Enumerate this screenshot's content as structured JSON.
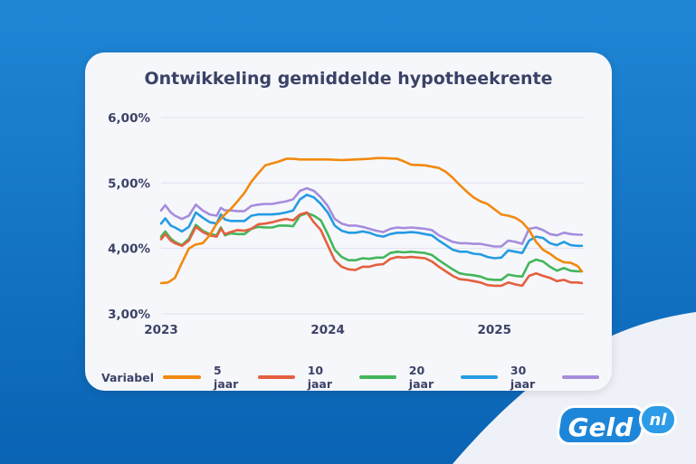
{
  "colors": {
    "variabel": "#f18a0e",
    "jaar5": "#e4603f",
    "jaar10": "#43b65b",
    "jaar20": "#259be2",
    "jaar30": "#a58ddc"
  },
  "logo": {
    "main": "Geld",
    "suffix": "nl"
  },
  "chart_data": {
    "type": "line",
    "title": "Ontwikkeling gemiddelde hypotheekrente",
    "xlabel": "",
    "ylabel": "",
    "x_ticks": [
      {
        "label": "2023",
        "t": 0
      },
      {
        "label": "2024",
        "t": 12
      },
      {
        "label": "2025",
        "t": 24
      }
    ],
    "y_ticks": [
      "3,00%",
      "4,00%",
      "5,00%",
      "6,00%"
    ],
    "ylim": [
      3.0,
      6.0
    ],
    "xlim": [
      0,
      30.5
    ],
    "grid": true,
    "legend_position": "bottom",
    "series": [
      {
        "name": "Variabel",
        "color_key": "variabel",
        "points": [
          [
            0,
            3.47
          ],
          [
            0.5,
            3.48
          ],
          [
            1,
            3.55
          ],
          [
            1.5,
            3.78
          ],
          [
            2,
            4.0
          ],
          [
            2.5,
            4.06
          ],
          [
            3,
            4.08
          ],
          [
            3.5,
            4.2
          ],
          [
            4,
            4.38
          ],
          [
            4.5,
            4.5
          ],
          [
            5,
            4.6
          ],
          [
            5.5,
            4.72
          ],
          [
            6,
            4.85
          ],
          [
            6.5,
            5.02
          ],
          [
            7,
            5.15
          ],
          [
            7.5,
            5.27
          ],
          [
            8,
            5.3
          ],
          [
            8.5,
            5.33
          ],
          [
            9,
            5.37
          ],
          [
            9.5,
            5.37
          ],
          [
            10,
            5.36
          ],
          [
            11,
            5.36
          ],
          [
            12,
            5.36
          ],
          [
            13,
            5.35
          ],
          [
            14,
            5.36
          ],
          [
            15,
            5.37
          ],
          [
            15.5,
            5.38
          ],
          [
            16,
            5.38
          ],
          [
            17,
            5.37
          ],
          [
            17.5,
            5.33
          ],
          [
            18,
            5.28
          ],
          [
            19,
            5.27
          ],
          [
            20,
            5.23
          ],
          [
            20.5,
            5.17
          ],
          [
            21,
            5.08
          ],
          [
            21.5,
            4.97
          ],
          [
            22,
            4.87
          ],
          [
            22.5,
            4.78
          ],
          [
            23,
            4.72
          ],
          [
            23.5,
            4.68
          ],
          [
            24,
            4.6
          ],
          [
            24.5,
            4.52
          ],
          [
            25,
            4.5
          ],
          [
            25.5,
            4.47
          ],
          [
            26,
            4.4
          ],
          [
            26.5,
            4.28
          ],
          [
            27,
            4.1
          ],
          [
            27.5,
            3.98
          ],
          [
            28,
            3.92
          ],
          [
            28.5,
            3.84
          ],
          [
            29,
            3.79
          ],
          [
            29.5,
            3.78
          ],
          [
            30,
            3.73
          ],
          [
            30.3,
            3.65
          ]
        ]
      },
      {
        "name": "5 jaar",
        "color_key": "jaar5",
        "points": [
          [
            0,
            4.14
          ],
          [
            0.3,
            4.22
          ],
          [
            0.7,
            4.12
          ],
          [
            1,
            4.08
          ],
          [
            1.5,
            4.04
          ],
          [
            2,
            4.12
          ],
          [
            2.5,
            4.33
          ],
          [
            3,
            4.25
          ],
          [
            3.5,
            4.2
          ],
          [
            4,
            4.18
          ],
          [
            4.3,
            4.3
          ],
          [
            4.6,
            4.22
          ],
          [
            5,
            4.25
          ],
          [
            5.5,
            4.28
          ],
          [
            6,
            4.27
          ],
          [
            6.5,
            4.3
          ],
          [
            7,
            4.37
          ],
          [
            7.5,
            4.38
          ],
          [
            8,
            4.4
          ],
          [
            8.5,
            4.43
          ],
          [
            9,
            4.45
          ],
          [
            9.5,
            4.43
          ],
          [
            10,
            4.52
          ],
          [
            10.5,
            4.55
          ],
          [
            11,
            4.4
          ],
          [
            11.5,
            4.28
          ],
          [
            12,
            4.05
          ],
          [
            12.5,
            3.82
          ],
          [
            13,
            3.72
          ],
          [
            13.5,
            3.68
          ],
          [
            14,
            3.67
          ],
          [
            14.5,
            3.72
          ],
          [
            15,
            3.72
          ],
          [
            15.5,
            3.75
          ],
          [
            16,
            3.76
          ],
          [
            16.5,
            3.84
          ],
          [
            17,
            3.87
          ],
          [
            17.5,
            3.86
          ],
          [
            18,
            3.87
          ],
          [
            18.5,
            3.86
          ],
          [
            19,
            3.85
          ],
          [
            19.5,
            3.8
          ],
          [
            20,
            3.72
          ],
          [
            20.5,
            3.65
          ],
          [
            21,
            3.58
          ],
          [
            21.5,
            3.53
          ],
          [
            22,
            3.52
          ],
          [
            22.5,
            3.5
          ],
          [
            23,
            3.48
          ],
          [
            23.5,
            3.44
          ],
          [
            24,
            3.43
          ],
          [
            24.5,
            3.43
          ],
          [
            25,
            3.48
          ],
          [
            25.5,
            3.45
          ],
          [
            26,
            3.43
          ],
          [
            26.5,
            3.58
          ],
          [
            27,
            3.62
          ],
          [
            27.5,
            3.58
          ],
          [
            28,
            3.55
          ],
          [
            28.5,
            3.5
          ],
          [
            29,
            3.52
          ],
          [
            29.5,
            3.48
          ],
          [
            30,
            3.48
          ],
          [
            30.3,
            3.47
          ]
        ]
      },
      {
        "name": "10 jaar",
        "color_key": "jaar10",
        "points": [
          [
            0,
            4.18
          ],
          [
            0.3,
            4.26
          ],
          [
            0.7,
            4.15
          ],
          [
            1,
            4.1
          ],
          [
            1.5,
            4.05
          ],
          [
            2,
            4.15
          ],
          [
            2.5,
            4.36
          ],
          [
            3,
            4.27
          ],
          [
            3.5,
            4.22
          ],
          [
            4,
            4.2
          ],
          [
            4.3,
            4.32
          ],
          [
            4.6,
            4.2
          ],
          [
            5,
            4.23
          ],
          [
            5.5,
            4.22
          ],
          [
            6,
            4.22
          ],
          [
            6.5,
            4.3
          ],
          [
            7,
            4.33
          ],
          [
            7.5,
            4.32
          ],
          [
            8,
            4.32
          ],
          [
            8.5,
            4.35
          ],
          [
            9,
            4.35
          ],
          [
            9.5,
            4.34
          ],
          [
            10,
            4.5
          ],
          [
            10.5,
            4.54
          ],
          [
            11,
            4.5
          ],
          [
            11.5,
            4.43
          ],
          [
            12,
            4.22
          ],
          [
            12.5,
            3.98
          ],
          [
            13,
            3.87
          ],
          [
            13.5,
            3.82
          ],
          [
            14,
            3.82
          ],
          [
            14.5,
            3.85
          ],
          [
            15,
            3.84
          ],
          [
            15.5,
            3.86
          ],
          [
            16,
            3.86
          ],
          [
            16.5,
            3.93
          ],
          [
            17,
            3.95
          ],
          [
            17.5,
            3.94
          ],
          [
            18,
            3.95
          ],
          [
            18.5,
            3.94
          ],
          [
            19,
            3.93
          ],
          [
            19.5,
            3.9
          ],
          [
            20,
            3.82
          ],
          [
            20.5,
            3.75
          ],
          [
            21,
            3.68
          ],
          [
            21.5,
            3.62
          ],
          [
            22,
            3.6
          ],
          [
            22.5,
            3.59
          ],
          [
            23,
            3.57
          ],
          [
            23.5,
            3.53
          ],
          [
            24,
            3.52
          ],
          [
            24.5,
            3.52
          ],
          [
            25,
            3.6
          ],
          [
            25.5,
            3.58
          ],
          [
            26,
            3.57
          ],
          [
            26.5,
            3.78
          ],
          [
            27,
            3.83
          ],
          [
            27.5,
            3.8
          ],
          [
            28,
            3.72
          ],
          [
            28.5,
            3.66
          ],
          [
            29,
            3.7
          ],
          [
            29.5,
            3.66
          ],
          [
            30,
            3.65
          ],
          [
            30.3,
            3.65
          ]
        ]
      },
      {
        "name": "20 jaar",
        "color_key": "jaar20",
        "points": [
          [
            0,
            4.38
          ],
          [
            0.3,
            4.46
          ],
          [
            0.7,
            4.35
          ],
          [
            1,
            4.32
          ],
          [
            1.5,
            4.26
          ],
          [
            2,
            4.33
          ],
          [
            2.5,
            4.55
          ],
          [
            3,
            4.47
          ],
          [
            3.5,
            4.4
          ],
          [
            4,
            4.38
          ],
          [
            4.3,
            4.52
          ],
          [
            4.6,
            4.44
          ],
          [
            5,
            4.42
          ],
          [
            5.5,
            4.42
          ],
          [
            6,
            4.42
          ],
          [
            6.5,
            4.5
          ],
          [
            7,
            4.52
          ],
          [
            7.5,
            4.52
          ],
          [
            8,
            4.52
          ],
          [
            8.5,
            4.53
          ],
          [
            9,
            4.55
          ],
          [
            9.5,
            4.58
          ],
          [
            10,
            4.75
          ],
          [
            10.5,
            4.82
          ],
          [
            11,
            4.78
          ],
          [
            11.5,
            4.68
          ],
          [
            12,
            4.55
          ],
          [
            12.5,
            4.35
          ],
          [
            13,
            4.27
          ],
          [
            13.5,
            4.24
          ],
          [
            14,
            4.24
          ],
          [
            14.5,
            4.26
          ],
          [
            15,
            4.24
          ],
          [
            15.5,
            4.2
          ],
          [
            16,
            4.18
          ],
          [
            16.5,
            4.22
          ],
          [
            17,
            4.24
          ],
          [
            17.5,
            4.24
          ],
          [
            18,
            4.25
          ],
          [
            18.5,
            4.24
          ],
          [
            19,
            4.22
          ],
          [
            19.5,
            4.2
          ],
          [
            20,
            4.12
          ],
          [
            20.5,
            4.05
          ],
          [
            21,
            3.98
          ],
          [
            21.5,
            3.95
          ],
          [
            22,
            3.95
          ],
          [
            22.5,
            3.92
          ],
          [
            23,
            3.91
          ],
          [
            23.5,
            3.87
          ],
          [
            24,
            3.85
          ],
          [
            24.5,
            3.86
          ],
          [
            25,
            3.97
          ],
          [
            25.5,
            3.95
          ],
          [
            26,
            3.93
          ],
          [
            26.5,
            4.12
          ],
          [
            27,
            4.18
          ],
          [
            27.5,
            4.16
          ],
          [
            28,
            4.08
          ],
          [
            28.5,
            4.05
          ],
          [
            29,
            4.1
          ],
          [
            29.5,
            4.05
          ],
          [
            30,
            4.04
          ],
          [
            30.3,
            4.04
          ]
        ]
      },
      {
        "name": "30 jaar",
        "color_key": "jaar30",
        "points": [
          [
            0,
            4.58
          ],
          [
            0.3,
            4.66
          ],
          [
            0.7,
            4.55
          ],
          [
            1,
            4.5
          ],
          [
            1.5,
            4.45
          ],
          [
            2,
            4.5
          ],
          [
            2.5,
            4.67
          ],
          [
            3,
            4.58
          ],
          [
            3.5,
            4.52
          ],
          [
            4,
            4.5
          ],
          [
            4.3,
            4.62
          ],
          [
            4.6,
            4.58
          ],
          [
            5,
            4.58
          ],
          [
            5.5,
            4.57
          ],
          [
            6,
            4.57
          ],
          [
            6.5,
            4.65
          ],
          [
            7,
            4.67
          ],
          [
            7.5,
            4.68
          ],
          [
            8,
            4.68
          ],
          [
            8.5,
            4.7
          ],
          [
            9,
            4.72
          ],
          [
            9.5,
            4.75
          ],
          [
            10,
            4.88
          ],
          [
            10.5,
            4.92
          ],
          [
            11,
            4.88
          ],
          [
            11.5,
            4.78
          ],
          [
            12,
            4.65
          ],
          [
            12.5,
            4.45
          ],
          [
            13,
            4.38
          ],
          [
            13.5,
            4.35
          ],
          [
            14,
            4.35
          ],
          [
            14.5,
            4.33
          ],
          [
            15,
            4.3
          ],
          [
            15.5,
            4.27
          ],
          [
            16,
            4.25
          ],
          [
            16.5,
            4.3
          ],
          [
            17,
            4.32
          ],
          [
            17.5,
            4.31
          ],
          [
            18,
            4.32
          ],
          [
            18.5,
            4.31
          ],
          [
            19,
            4.3
          ],
          [
            19.5,
            4.28
          ],
          [
            20,
            4.2
          ],
          [
            20.5,
            4.15
          ],
          [
            21,
            4.1
          ],
          [
            21.5,
            4.08
          ],
          [
            22,
            4.08
          ],
          [
            22.5,
            4.07
          ],
          [
            23,
            4.07
          ],
          [
            23.5,
            4.05
          ],
          [
            24,
            4.03
          ],
          [
            24.5,
            4.03
          ],
          [
            25,
            4.12
          ],
          [
            25.5,
            4.1
          ],
          [
            26,
            4.07
          ],
          [
            26.5,
            4.3
          ],
          [
            27,
            4.32
          ],
          [
            27.5,
            4.28
          ],
          [
            28,
            4.22
          ],
          [
            28.5,
            4.2
          ],
          [
            29,
            4.24
          ],
          [
            29.5,
            4.22
          ],
          [
            30,
            4.21
          ],
          [
            30.3,
            4.21
          ]
        ]
      }
    ]
  }
}
